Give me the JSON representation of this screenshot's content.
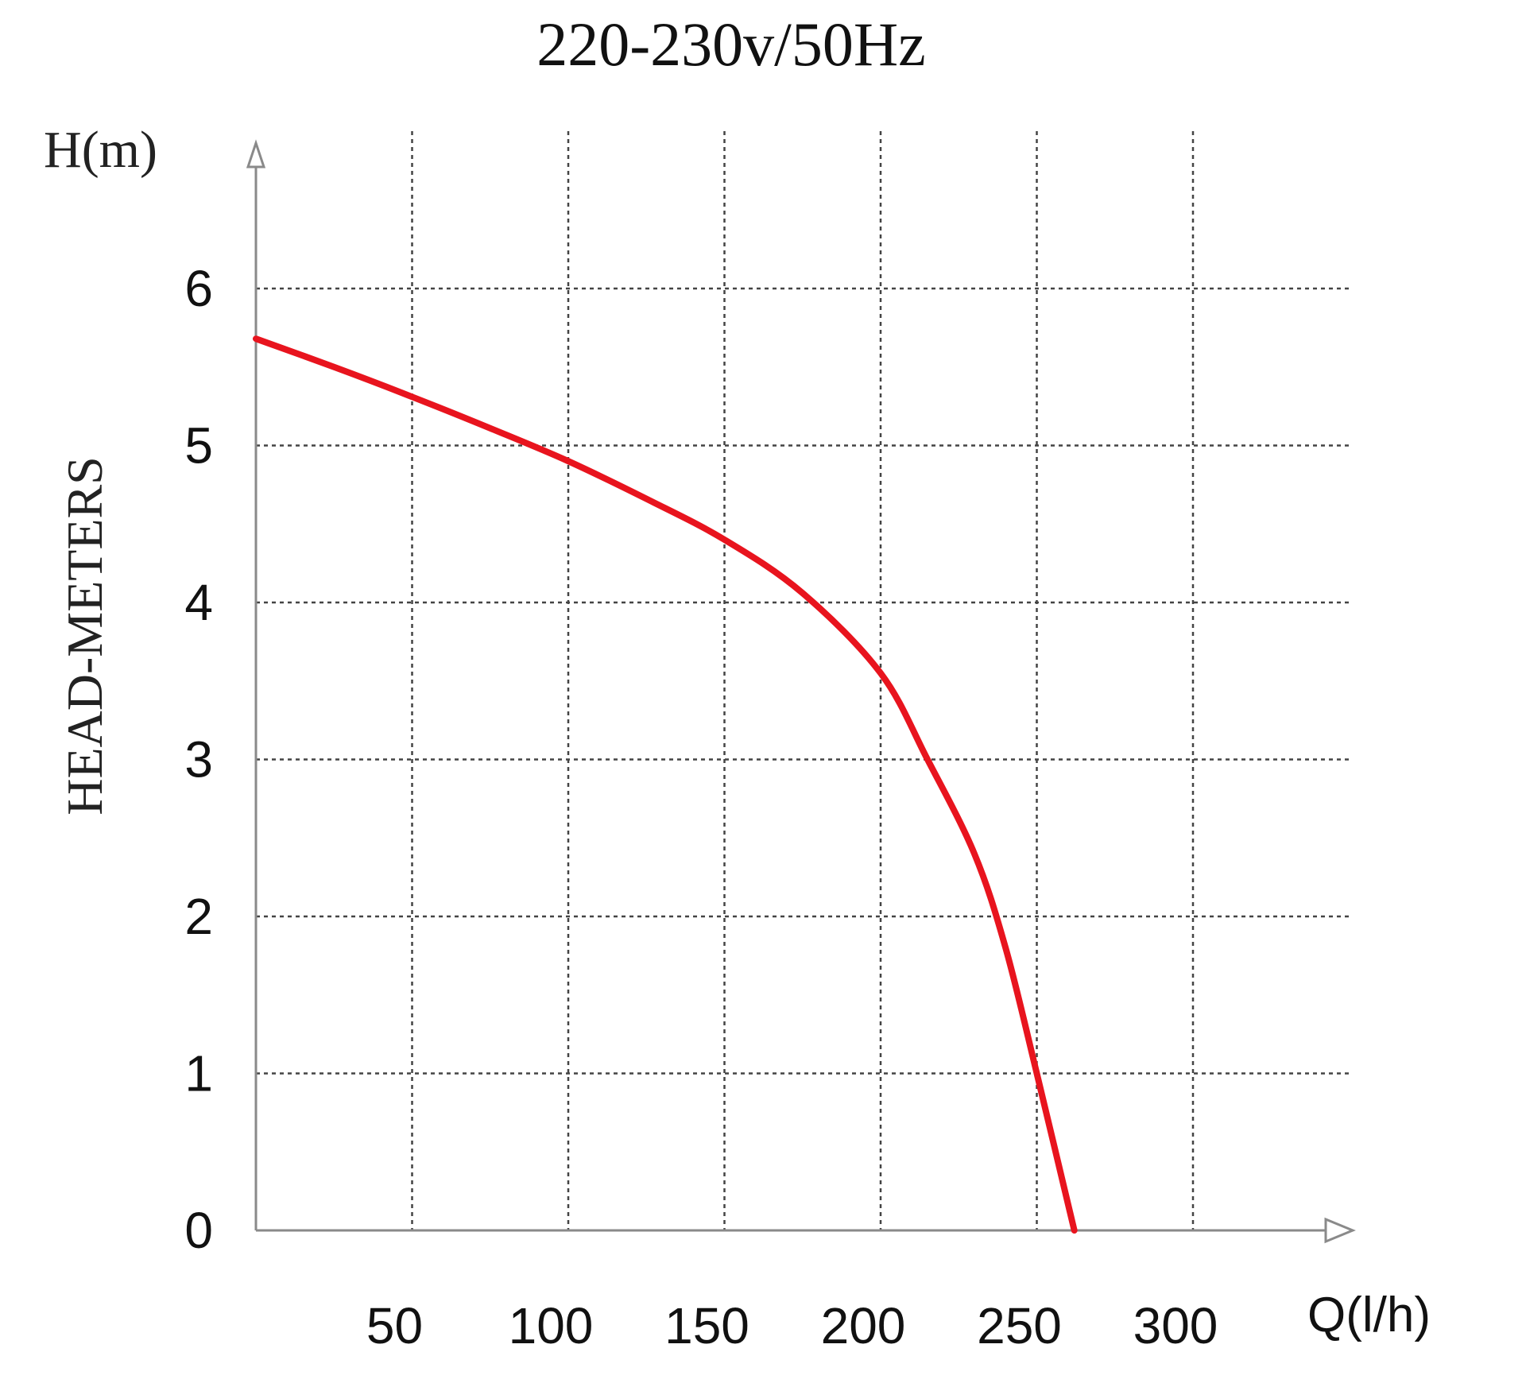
{
  "chart_data": {
    "type": "line",
    "title": "220-230v/50Hz",
    "ylabel_top": "H(m)",
    "ylabel": "HEAD-METERS",
    "xlabel": "Q(l/h)",
    "x_ticks": [
      50,
      100,
      150,
      200,
      250,
      300
    ],
    "y_ticks": [
      0,
      1,
      2,
      3,
      4,
      5,
      6
    ],
    "xlim": [
      0,
      350
    ],
    "ylim": [
      0,
      6
    ],
    "grid": true,
    "series": [
      {
        "color": "#e8141e",
        "x": [
          0,
          25,
          50,
          75,
          100,
          125,
          150,
          175,
          200,
          215,
          230,
          240,
          250,
          262
        ],
        "y": [
          5.68,
          5.5,
          5.31,
          5.11,
          4.9,
          4.66,
          4.4,
          4.06,
          3.55,
          3.0,
          2.4,
          1.8,
          1.0,
          0.0
        ]
      }
    ]
  }
}
